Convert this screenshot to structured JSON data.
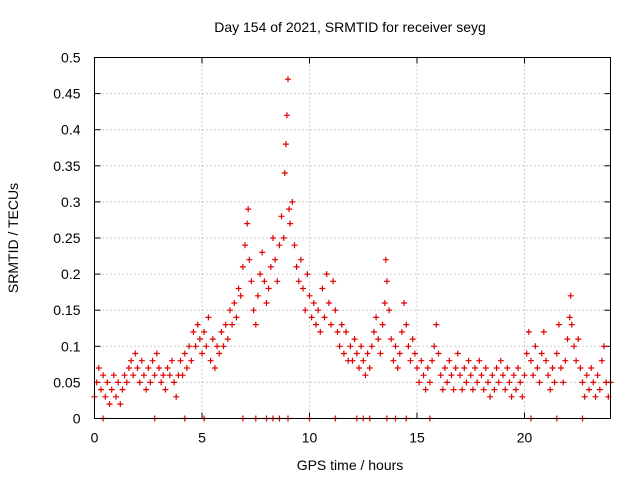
{
  "colors": {
    "series": "#e00000",
    "grid": "#a0a0a0",
    "frame": "#000000"
  },
  "chart_data": {
    "type": "scatter",
    "title": "Day 154 of 2021, SRMTID for receiver seyg",
    "xlabel": "GPS time / hours",
    "ylabel": "SRMTID / TECUs",
    "xlim": [
      0,
      24
    ],
    "ylim": [
      0,
      0.5
    ],
    "grid": true,
    "legend": "none",
    "xticks": [
      {
        "value": 0,
        "label": "0"
      },
      {
        "value": 5,
        "label": "5"
      },
      {
        "value": 10,
        "label": "10"
      },
      {
        "value": 15,
        "label": "15"
      },
      {
        "value": 20,
        "label": "20"
      }
    ],
    "yticks": [
      {
        "value": 0,
        "label": "0"
      },
      {
        "value": 0.05,
        "label": "0.05"
      },
      {
        "value": 0.1,
        "label": "0.1"
      },
      {
        "value": 0.15,
        "label": "0.15"
      },
      {
        "value": 0.2,
        "label": "0.2"
      },
      {
        "value": 0.25,
        "label": "0.25"
      },
      {
        "value": 0.3,
        "label": "0.3"
      },
      {
        "value": 0.35,
        "label": "0.35"
      },
      {
        "value": 0.4,
        "label": "0.4"
      },
      {
        "value": 0.45,
        "label": "0.45"
      },
      {
        "value": 0.5,
        "label": "0.5"
      }
    ],
    "series": [
      {
        "name": "SRMTID",
        "marker": "plus",
        "points": [
          [
            0.0,
            0.03
          ],
          [
            0.1,
            0.05
          ],
          [
            0.2,
            0.07
          ],
          [
            0.3,
            0.04
          ],
          [
            0.4,
            0.06
          ],
          [
            0.5,
            0.03
          ],
          [
            0.6,
            0.05
          ],
          [
            0.7,
            0.02
          ],
          [
            0.8,
            0.04
          ],
          [
            0.9,
            0.06
          ],
          [
            1.0,
            0.03
          ],
          [
            1.1,
            0.05
          ],
          [
            1.2,
            0.02
          ],
          [
            1.3,
            0.04
          ],
          [
            1.4,
            0.06
          ],
          [
            1.5,
            0.05
          ],
          [
            1.6,
            0.07
          ],
          [
            1.7,
            0.08
          ],
          [
            1.8,
            0.06
          ],
          [
            1.9,
            0.09
          ],
          [
            2.0,
            0.07
          ],
          [
            2.1,
            0.05
          ],
          [
            2.2,
            0.08
          ],
          [
            2.3,
            0.06
          ],
          [
            2.4,
            0.04
          ],
          [
            2.5,
            0.07
          ],
          [
            2.6,
            0.05
          ],
          [
            2.7,
            0.08
          ],
          [
            2.8,
            0.06
          ],
          [
            2.9,
            0.09
          ],
          [
            3.0,
            0.07
          ],
          [
            3.1,
            0.05
          ],
          [
            3.2,
            0.06
          ],
          [
            3.3,
            0.04
          ],
          [
            3.4,
            0.07
          ],
          [
            3.5,
            0.06
          ],
          [
            3.6,
            0.08
          ],
          [
            3.7,
            0.05
          ],
          [
            3.8,
            0.03
          ],
          [
            3.9,
            0.06
          ],
          [
            4.0,
            0.08
          ],
          [
            4.1,
            0.06
          ],
          [
            4.2,
            0.09
          ],
          [
            4.3,
            0.07
          ],
          [
            4.4,
            0.1
          ],
          [
            4.5,
            0.08
          ],
          [
            4.6,
            0.12
          ],
          [
            4.7,
            0.1
          ],
          [
            4.8,
            0.13
          ],
          [
            4.9,
            0.11
          ],
          [
            5.0,
            0.09
          ],
          [
            5.1,
            0.12
          ],
          [
            5.2,
            0.1
          ],
          [
            5.3,
            0.14
          ],
          [
            5.4,
            0.08
          ],
          [
            5.5,
            0.11
          ],
          [
            5.6,
            0.07
          ],
          [
            5.7,
            0.1
          ],
          [
            5.8,
            0.09
          ],
          [
            5.9,
            0.12
          ],
          [
            6.0,
            0.1
          ],
          [
            6.1,
            0.13
          ],
          [
            6.2,
            0.11
          ],
          [
            6.3,
            0.15
          ],
          [
            6.4,
            0.13
          ],
          [
            6.5,
            0.16
          ],
          [
            6.6,
            0.14
          ],
          [
            6.7,
            0.18
          ],
          [
            6.8,
            0.17
          ],
          [
            6.9,
            0.21
          ],
          [
            7.0,
            0.24
          ],
          [
            7.1,
            0.27
          ],
          [
            7.15,
            0.29
          ],
          [
            7.2,
            0.22
          ],
          [
            7.3,
            0.19
          ],
          [
            7.4,
            0.15
          ],
          [
            7.5,
            0.13
          ],
          [
            7.6,
            0.17
          ],
          [
            7.7,
            0.2
          ],
          [
            7.8,
            0.23
          ],
          [
            7.9,
            0.19
          ],
          [
            8.0,
            0.16
          ],
          [
            8.1,
            0.18
          ],
          [
            8.2,
            0.21
          ],
          [
            8.3,
            0.25
          ],
          [
            8.4,
            0.22
          ],
          [
            8.5,
            0.19
          ],
          [
            8.6,
            0.24
          ],
          [
            8.7,
            0.28
          ],
          [
            8.8,
            0.25
          ],
          [
            8.85,
            0.34
          ],
          [
            8.9,
            0.38
          ],
          [
            8.95,
            0.42
          ],
          [
            9.0,
            0.47
          ],
          [
            9.05,
            0.29
          ],
          [
            9.1,
            0.27
          ],
          [
            9.2,
            0.3
          ],
          [
            9.3,
            0.24
          ],
          [
            9.4,
            0.21
          ],
          [
            9.5,
            0.19
          ],
          [
            9.6,
            0.22
          ],
          [
            9.7,
            0.18
          ],
          [
            9.8,
            0.15
          ],
          [
            9.9,
            0.2
          ],
          [
            10.0,
            0.17
          ],
          [
            10.1,
            0.14
          ],
          [
            10.2,
            0.16
          ],
          [
            10.3,
            0.13
          ],
          [
            10.4,
            0.15
          ],
          [
            10.5,
            0.12
          ],
          [
            10.6,
            0.18
          ],
          [
            10.7,
            0.14
          ],
          [
            10.8,
            0.2
          ],
          [
            10.9,
            0.16
          ],
          [
            11.0,
            0.13
          ],
          [
            11.1,
            0.19
          ],
          [
            11.2,
            0.15
          ],
          [
            11.3,
            0.12
          ],
          [
            11.4,
            0.1
          ],
          [
            11.5,
            0.13
          ],
          [
            11.6,
            0.09
          ],
          [
            11.7,
            0.12
          ],
          [
            11.8,
            0.08
          ],
          [
            11.9,
            0.1
          ],
          [
            12.0,
            0.08
          ],
          [
            12.1,
            0.11
          ],
          [
            12.2,
            0.09
          ],
          [
            12.3,
            0.07
          ],
          [
            12.4,
            0.1
          ],
          [
            12.5,
            0.08
          ],
          [
            12.6,
            0.06
          ],
          [
            12.7,
            0.09
          ],
          [
            12.8,
            0.07
          ],
          [
            12.9,
            0.1
          ],
          [
            13.0,
            0.12
          ],
          [
            13.1,
            0.14
          ],
          [
            13.2,
            0.11
          ],
          [
            13.3,
            0.09
          ],
          [
            13.4,
            0.13
          ],
          [
            13.5,
            0.16
          ],
          [
            13.55,
            0.22
          ],
          [
            13.6,
            0.19
          ],
          [
            13.7,
            0.15
          ],
          [
            13.8,
            0.11
          ],
          [
            13.9,
            0.08
          ],
          [
            14.0,
            0.1
          ],
          [
            14.1,
            0.07
          ],
          [
            14.2,
            0.09
          ],
          [
            14.3,
            0.12
          ],
          [
            14.4,
            0.16
          ],
          [
            14.5,
            0.13
          ],
          [
            14.6,
            0.1
          ],
          [
            14.7,
            0.08
          ],
          [
            14.8,
            0.11
          ],
          [
            14.9,
            0.09
          ],
          [
            15.0,
            0.07
          ],
          [
            15.1,
            0.05
          ],
          [
            15.2,
            0.08
          ],
          [
            15.3,
            0.06
          ],
          [
            15.4,
            0.04
          ],
          [
            15.5,
            0.07
          ],
          [
            15.6,
            0.05
          ],
          [
            15.7,
            0.08
          ],
          [
            15.8,
            0.1
          ],
          [
            15.9,
            0.13
          ],
          [
            16.0,
            0.09
          ],
          [
            16.1,
            0.06
          ],
          [
            16.2,
            0.04
          ],
          [
            16.3,
            0.07
          ],
          [
            16.4,
            0.05
          ],
          [
            16.5,
            0.08
          ],
          [
            16.6,
            0.06
          ],
          [
            16.7,
            0.04
          ],
          [
            16.8,
            0.07
          ],
          [
            16.9,
            0.09
          ],
          [
            17.0,
            0.06
          ],
          [
            17.1,
            0.04
          ],
          [
            17.2,
            0.07
          ],
          [
            17.3,
            0.05
          ],
          [
            17.4,
            0.08
          ],
          [
            17.5,
            0.06
          ],
          [
            17.6,
            0.04
          ],
          [
            17.7,
            0.07
          ],
          [
            17.8,
            0.05
          ],
          [
            17.9,
            0.08
          ],
          [
            18.0,
            0.06
          ],
          [
            18.1,
            0.04
          ],
          [
            18.2,
            0.07
          ],
          [
            18.3,
            0.05
          ],
          [
            18.4,
            0.03
          ],
          [
            18.5,
            0.06
          ],
          [
            18.6,
            0.04
          ],
          [
            18.7,
            0.07
          ],
          [
            18.8,
            0.05
          ],
          [
            18.9,
            0.08
          ],
          [
            19.0,
            0.06
          ],
          [
            19.1,
            0.04
          ],
          [
            19.2,
            0.07
          ],
          [
            19.3,
            0.05
          ],
          [
            19.4,
            0.03
          ],
          [
            19.5,
            0.06
          ],
          [
            19.6,
            0.04
          ],
          [
            19.7,
            0.07
          ],
          [
            19.8,
            0.05
          ],
          [
            19.9,
            0.03
          ],
          [
            20.0,
            0.06
          ],
          [
            20.1,
            0.09
          ],
          [
            20.2,
            0.12
          ],
          [
            20.3,
            0.08
          ],
          [
            20.4,
            0.06
          ],
          [
            20.5,
            0.1
          ],
          [
            20.6,
            0.07
          ],
          [
            20.7,
            0.05
          ],
          [
            20.8,
            0.09
          ],
          [
            20.9,
            0.12
          ],
          [
            21.0,
            0.08
          ],
          [
            21.1,
            0.06
          ],
          [
            21.2,
            0.04
          ],
          [
            21.3,
            0.07
          ],
          [
            21.4,
            0.05
          ],
          [
            21.5,
            0.09
          ],
          [
            21.6,
            0.13
          ],
          [
            21.7,
            0.07
          ],
          [
            21.8,
            0.05
          ],
          [
            21.9,
            0.08
          ],
          [
            22.0,
            0.11
          ],
          [
            22.1,
            0.14
          ],
          [
            22.15,
            0.17
          ],
          [
            22.2,
            0.13
          ],
          [
            22.3,
            0.1
          ],
          [
            22.4,
            0.08
          ],
          [
            22.5,
            0.11
          ],
          [
            22.6,
            0.07
          ],
          [
            22.7,
            0.05
          ],
          [
            22.8,
            0.03
          ],
          [
            22.9,
            0.06
          ],
          [
            23.0,
            0.04
          ],
          [
            23.1,
            0.07
          ],
          [
            23.2,
            0.05
          ],
          [
            23.3,
            0.03
          ],
          [
            23.4,
            0.06
          ],
          [
            23.5,
            0.04
          ],
          [
            23.6,
            0.08
          ],
          [
            23.7,
            0.1
          ],
          [
            23.8,
            0.05
          ],
          [
            23.9,
            0.03
          ],
          [
            24.0,
            0.05
          ],
          [
            0.4,
            0.0
          ],
          [
            2.8,
            0.0
          ],
          [
            4.2,
            0.0
          ],
          [
            5.1,
            0.0
          ],
          [
            6.9,
            0.0
          ],
          [
            7.5,
            0.0
          ],
          [
            8.0,
            0.0
          ],
          [
            8.3,
            0.0
          ],
          [
            8.6,
            0.0
          ],
          [
            9.0,
            0.0
          ],
          [
            10.0,
            0.0
          ],
          [
            11.2,
            0.0
          ],
          [
            12.2,
            0.0
          ],
          [
            12.5,
            0.0
          ],
          [
            12.8,
            0.0
          ],
          [
            13.6,
            0.0
          ],
          [
            14.0,
            0.0
          ],
          [
            14.5,
            0.0
          ],
          [
            15.6,
            0.0
          ],
          [
            20.3,
            0.0
          ],
          [
            21.5,
            0.0
          ],
          [
            22.7,
            0.0
          ]
        ]
      }
    ]
  }
}
